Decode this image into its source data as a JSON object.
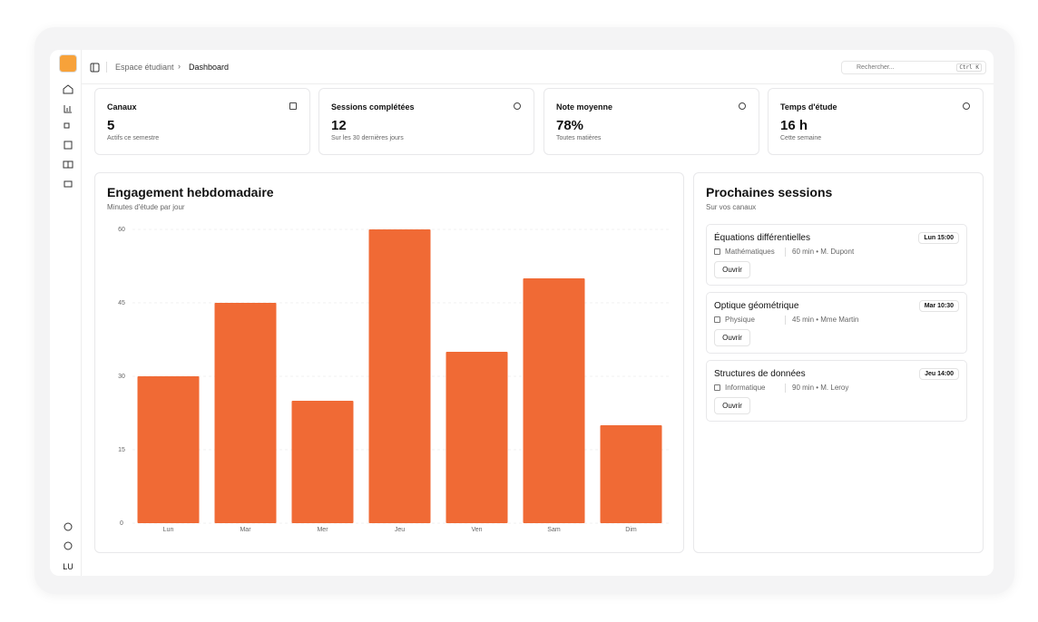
{
  "header": {
    "breadcrumb": [
      "Espace étudiant",
      "Dashboard"
    ],
    "search_placeholder": "Rechercher...",
    "shortcut": "Ctrl K"
  },
  "sidebar": {
    "avatar": "LU"
  },
  "stats": [
    {
      "title": "Canaux",
      "value": "5",
      "caption": "Actifs ce semestre"
    },
    {
      "title": "Sessions complétées",
      "value": "12",
      "caption": "Sur les 30 dernières jours"
    },
    {
      "title": "Note moyenne",
      "value": "78%",
      "caption": "Toutes matières"
    },
    {
      "title": "Temps d'étude",
      "value": "16 h",
      "caption": "Cette semaine"
    }
  ],
  "chart_data": {
    "type": "bar",
    "title": "Engagement hebdomadaire",
    "subtitle": "Minutes d'étude par jour",
    "categories": [
      "Lun",
      "Mar",
      "Mer",
      "Jeu",
      "Ven",
      "Sam",
      "Dim"
    ],
    "values": [
      30,
      45,
      25,
      60,
      35,
      50,
      20
    ],
    "color": "#f06a35",
    "ylim": [
      0,
      60
    ],
    "yticks": [
      0,
      15,
      30,
      45,
      60
    ],
    "grid": true
  },
  "sessions": {
    "title": "Prochaines sessions",
    "subtitle": "Sur vos canaux",
    "items": [
      {
        "title": "Équations différentielles",
        "badge": "Lun 15:00",
        "subject": "Mathématiques",
        "details": "60 min • M. Dupont",
        "button": "Ouvrir"
      },
      {
        "title": "Optique géométrique",
        "badge": "Mar 10:30",
        "subject": "Physique",
        "details": "45 min • Mme Martin",
        "button": "Ouvrir"
      },
      {
        "title": "Structures de données",
        "badge": "Jeu 14:00",
        "subject": "Informatique",
        "details": "90 min • M. Leroy",
        "button": "Ouvrir"
      }
    ]
  }
}
